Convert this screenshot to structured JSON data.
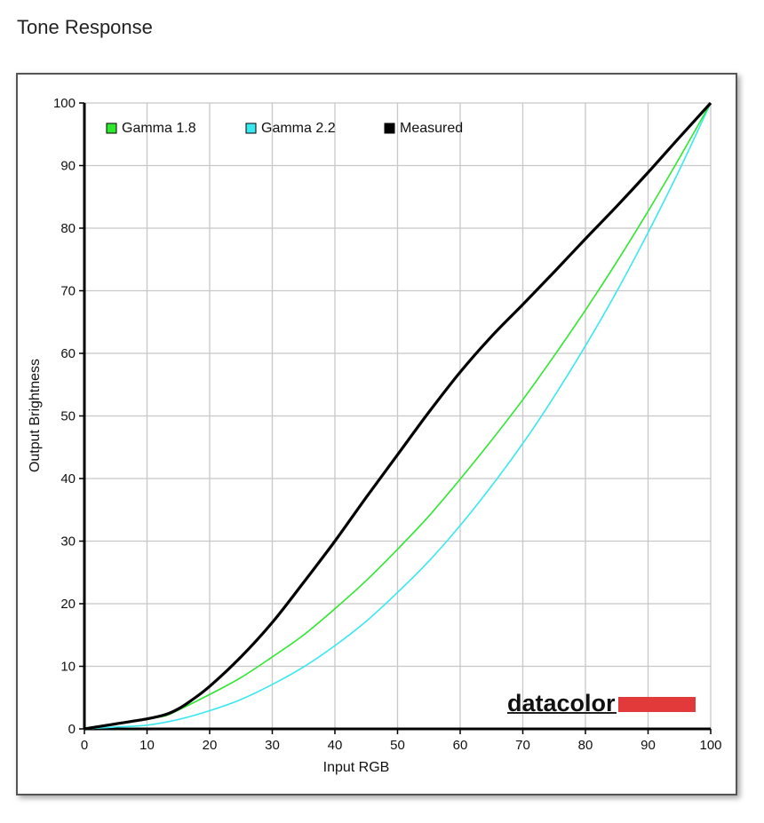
{
  "page": {
    "title": "Tone Response"
  },
  "logo": {
    "text": "datacolor",
    "color": "#e23a3a"
  },
  "colors": {
    "gamma18": "#2ee82e",
    "gamma22": "#38e8f0",
    "measured": "#000000",
    "grid": "#c8c8c8"
  },
  "chart_data": {
    "type": "line",
    "xlabel": "Input RGB",
    "ylabel": "Output Brightness",
    "xlim": [
      0,
      100
    ],
    "ylim": [
      0,
      100
    ],
    "xticks": [
      0,
      10,
      20,
      30,
      40,
      50,
      60,
      70,
      80,
      90,
      100
    ],
    "yticks": [
      0,
      10,
      20,
      30,
      40,
      50,
      60,
      70,
      80,
      90,
      100
    ],
    "grid": true,
    "legend_position": "top-left",
    "series": [
      {
        "name": "Gamma 1.8",
        "color": "#2ee82e",
        "x": [
          0,
          5,
          10,
          13,
          15,
          20,
          25,
          30,
          35,
          40,
          45,
          50,
          55,
          60,
          65,
          70,
          75,
          80,
          85,
          90,
          95,
          100
        ],
        "y": [
          0,
          0.8,
          1.6,
          2.1,
          3.0,
          5.5,
          8.2,
          11.5,
          15.0,
          19.2,
          23.7,
          28.7,
          34.0,
          39.9,
          46.1,
          52.6,
          59.6,
          66.9,
          74.6,
          82.7,
          91.2,
          100
        ]
      },
      {
        "name": "Gamma 2.2",
        "color": "#38e8f0",
        "x": [
          0,
          5,
          10,
          15,
          20,
          25,
          30,
          35,
          40,
          45,
          50,
          55,
          60,
          65,
          70,
          75,
          80,
          85,
          90,
          95,
          100
        ],
        "y": [
          0,
          0.3,
          0.6,
          1.5,
          2.9,
          4.7,
          7.1,
          9.9,
          13.3,
          17.2,
          21.8,
          26.8,
          32.5,
          38.8,
          45.6,
          53.1,
          61.2,
          69.9,
          79.3,
          89.3,
          100
        ]
      },
      {
        "name": "Measured",
        "color": "#000000",
        "x": [
          0,
          5,
          10,
          13,
          15,
          17,
          20,
          25,
          30,
          35,
          40,
          45,
          50,
          55,
          60,
          65,
          70,
          75,
          80,
          85,
          90,
          95,
          100
        ],
        "y": [
          0,
          0.8,
          1.6,
          2.3,
          3.2,
          4.5,
          6.8,
          11.5,
          17.0,
          23.4,
          30.0,
          37.0,
          43.8,
          50.6,
          57.0,
          62.7,
          67.8,
          73.0,
          78.3,
          83.5,
          88.9,
          94.5,
          100
        ]
      }
    ]
  }
}
